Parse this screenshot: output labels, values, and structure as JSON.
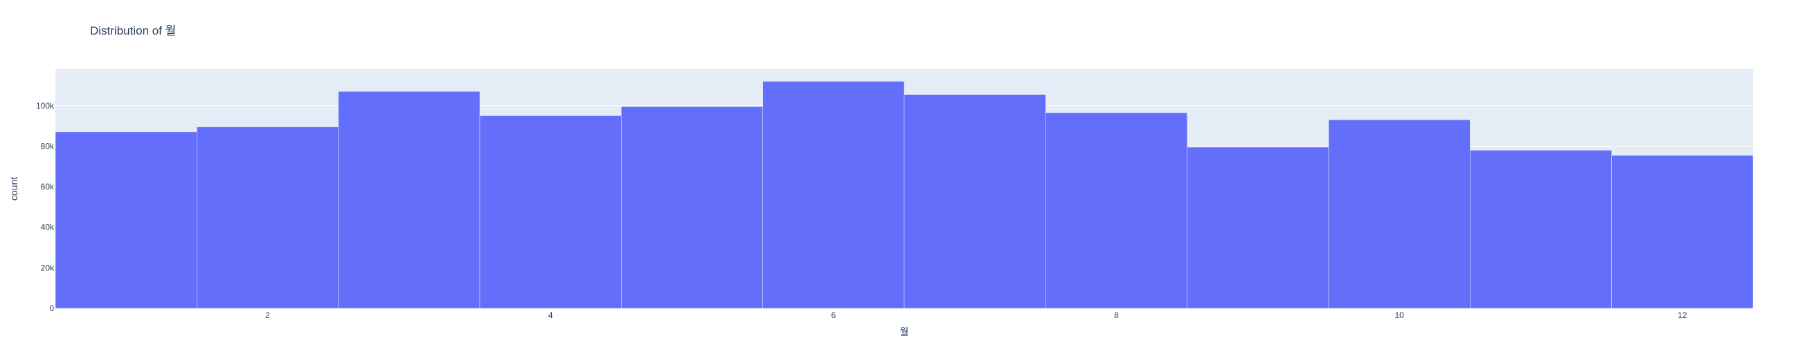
{
  "chart_data": {
    "type": "bar",
    "title": "Distribution of 월",
    "xlabel": "월",
    "ylabel": "count",
    "x": [
      1,
      2,
      3,
      4,
      5,
      6,
      7,
      8,
      9,
      10,
      11,
      12
    ],
    "values": [
      87000,
      89500,
      107000,
      95000,
      99500,
      112000,
      105500,
      96500,
      79500,
      93000,
      78000,
      75500
    ],
    "xlim": [
      0.5,
      12.5
    ],
    "ylim": [
      0,
      118000
    ],
    "x_ticks": [
      2,
      4,
      6,
      8,
      10,
      12
    ],
    "x_tick_labels": [
      "2",
      "4",
      "6",
      "8",
      "10",
      "12"
    ],
    "y_ticks": [
      0,
      20000,
      40000,
      60000,
      80000,
      100000
    ],
    "y_tick_labels": [
      "0",
      "20k",
      "40k",
      "60k",
      "80k",
      "100k"
    ],
    "grid": true,
    "colors": {
      "bar": "#636efa",
      "plot_background": "#e5ecf6",
      "grid": "#ffffff",
      "text": "#2a3f5f"
    }
  }
}
